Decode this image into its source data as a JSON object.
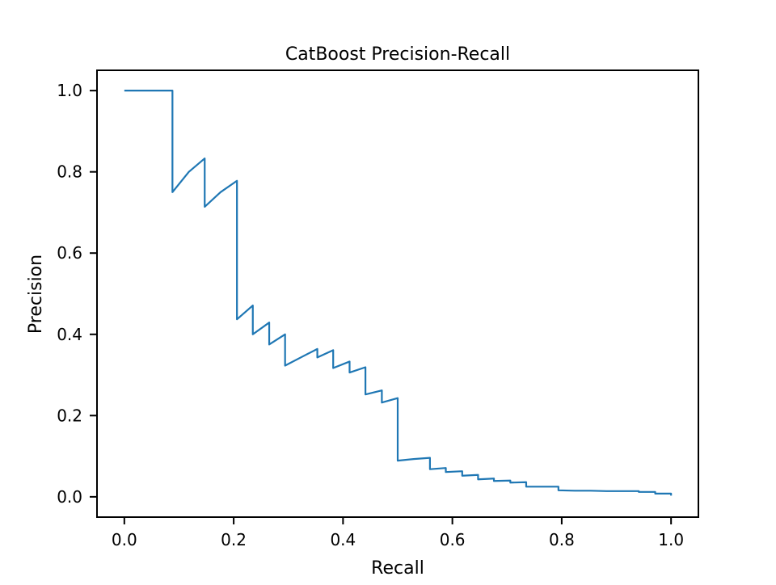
{
  "chart_data": {
    "type": "line",
    "title": "CatBoost Precision-Recall",
    "xlabel": "Recall",
    "ylabel": "Precision",
    "xlim": [
      -0.05,
      1.05
    ],
    "ylim": [
      -0.05,
      1.05
    ],
    "x_ticks": [
      0.0,
      0.2,
      0.4,
      0.6,
      0.8,
      1.0
    ],
    "y_ticks": [
      0.0,
      0.2,
      0.4,
      0.6,
      0.8,
      1.0
    ],
    "x_tick_labels": [
      "0.0",
      "0.2",
      "0.4",
      "0.6",
      "0.8",
      "1.0"
    ],
    "y_tick_labels": [
      "0.0",
      "0.2",
      "0.4",
      "0.6",
      "0.8",
      "1.0"
    ],
    "grid": false,
    "legend": "none",
    "line_color": "#1f77b4",
    "series": [
      {
        "x": [
          0.0,
          0.088,
          0.088,
          0.118,
          0.147,
          0.147,
          0.176,
          0.206,
          0.206,
          0.235,
          0.235,
          0.265,
          0.265,
          0.294,
          0.294,
          0.324,
          0.353,
          0.353,
          0.382,
          0.382,
          0.412,
          0.412,
          0.441,
          0.441,
          0.471,
          0.471,
          0.5,
          0.5,
          0.529,
          0.559,
          0.559,
          0.588,
          0.588,
          0.618,
          0.618,
          0.647,
          0.647,
          0.676,
          0.676,
          0.706,
          0.706,
          0.735,
          0.735,
          0.765,
          0.794,
          0.794,
          0.824,
          0.853,
          0.882,
          0.912,
          0.941,
          0.941,
          0.971,
          0.971,
          1.0,
          1.0
        ],
        "y": [
          1.0,
          1.0,
          0.75,
          0.8,
          0.833,
          0.714,
          0.75,
          0.778,
          0.437,
          0.471,
          0.4,
          0.429,
          0.375,
          0.4,
          0.323,
          0.344,
          0.364,
          0.343,
          0.361,
          0.317,
          0.333,
          0.306,
          0.319,
          0.252,
          0.262,
          0.232,
          0.243,
          0.089,
          0.093,
          0.096,
          0.068,
          0.071,
          0.061,
          0.063,
          0.052,
          0.054,
          0.043,
          0.045,
          0.039,
          0.04,
          0.035,
          0.036,
          0.025,
          0.025,
          0.025,
          0.016,
          0.015,
          0.015,
          0.014,
          0.014,
          0.014,
          0.012,
          0.012,
          0.008,
          0.008,
          0.003
        ]
      }
    ]
  }
}
